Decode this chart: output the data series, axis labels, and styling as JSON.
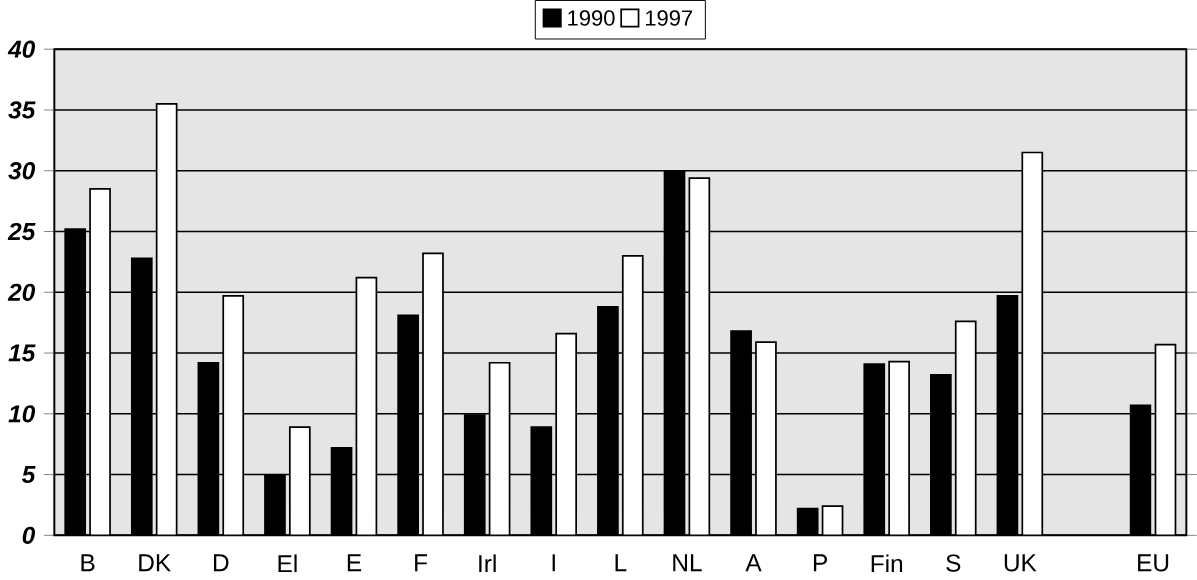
{
  "chart_data": {
    "type": "bar",
    "categories": [
      "B",
      "DK",
      "D",
      "El",
      "E",
      "F",
      "Irl",
      "I",
      "L",
      "NL",
      "A",
      "P",
      "Fin",
      "S",
      "UK",
      null,
      "EU"
    ],
    "series": [
      {
        "name": "1990",
        "color": "#000000",
        "values": [
          25.2,
          22.8,
          14.2,
          4.9,
          7.2,
          18.1,
          9.9,
          8.9,
          18.8,
          29.9,
          16.8,
          2.2,
          14.1,
          13.2,
          19.7,
          null,
          10.7
        ]
      },
      {
        "name": "1997",
        "color": "#ffffff",
        "values": [
          28.5,
          35.5,
          19.7,
          8.9,
          21.2,
          23.2,
          14.2,
          16.6,
          23.0,
          29.4,
          15.9,
          2.4,
          14.3,
          17.6,
          31.5,
          null,
          15.7
        ]
      }
    ],
    "ylim": [
      0,
      40
    ],
    "yticks": [
      0,
      5,
      10,
      15,
      20,
      25,
      30,
      35,
      40
    ],
    "grid": "y",
    "legend": "top"
  }
}
